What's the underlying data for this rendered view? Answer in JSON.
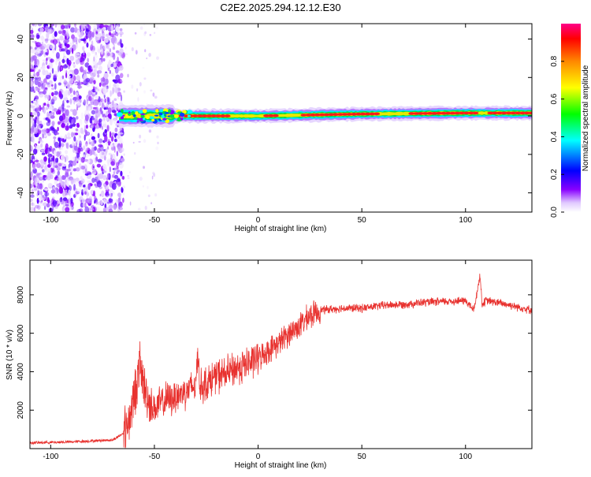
{
  "title": "C2E2.2025.294.12.12.E30",
  "colors": {
    "line": "#e8322f",
    "axis": "#000000",
    "ridge_red": "#ff1a1a"
  },
  "chart_data": [
    {
      "type": "heatmap",
      "name": "spectrogram",
      "xlabel": "Height of straight line (km)",
      "ylabel": "Frequency (Hz)",
      "xlim": [
        -110,
        132
      ],
      "ylim": [
        -50,
        48
      ],
      "xticks": [
        -100,
        -50,
        0,
        50,
        100
      ],
      "yticks": [
        -40,
        -20,
        0,
        20,
        40
      ],
      "colorbar": {
        "label": "Normalized spectral amplitude",
        "range": [
          0,
          1
        ],
        "ticks": [
          "0.0",
          "0.2",
          "0.4",
          "0.6",
          "0.8"
        ],
        "colormap": [
          "#ffffff",
          "#8800ff",
          "#0000ff",
          "#00ffff",
          "#00ff00",
          "#ffff00",
          "#ff8800",
          "#ff0000",
          "#ff0088"
        ]
      },
      "features": {
        "noise_region_km": [
          -110,
          -65
        ],
        "ridge_start_km": -67,
        "ridge_center_hz": [
          [
            -67,
            0
          ],
          [
            -50,
            0
          ],
          [
            -30,
            0
          ],
          [
            0,
            0
          ],
          [
            50,
            1
          ],
          [
            100,
            1.5
          ],
          [
            132,
            1.5
          ]
        ]
      }
    },
    {
      "type": "line",
      "name": "snr",
      "xlabel": "Height of straight line (km)",
      "ylabel": "SNR (10 * v/v)",
      "xlim": [
        -110,
        132
      ],
      "ylim": [
        0,
        9800
      ],
      "xticks": [
        -100,
        -50,
        0,
        50,
        100
      ],
      "yticks": [
        2000,
        4000,
        6000,
        8000
      ],
      "series": [
        {
          "name": "SNR",
          "x": [
            -110,
            -90,
            -70,
            -65,
            -62,
            -60,
            -58,
            -57,
            -55,
            -52,
            -50,
            -45,
            -40,
            -35,
            -30,
            -29,
            -28,
            -25,
            -20,
            -15,
            -10,
            -5,
            0,
            5,
            10,
            15,
            20,
            25,
            30,
            40,
            50,
            60,
            70,
            80,
            90,
            100,
            104,
            107,
            108,
            110,
            120,
            132
          ],
          "y": [
            300,
            350,
            450,
            800,
            1600,
            2600,
            3700,
            4400,
            3200,
            2300,
            2100,
            2500,
            2700,
            3000,
            3300,
            5200,
            3200,
            3400,
            3800,
            3900,
            4200,
            4400,
            4700,
            5100,
            5500,
            6000,
            6400,
            6900,
            7200,
            7300,
            7300,
            7450,
            7500,
            7600,
            7650,
            7700,
            7200,
            9000,
            7500,
            7700,
            7500,
            7200
          ]
        }
      ]
    }
  ]
}
